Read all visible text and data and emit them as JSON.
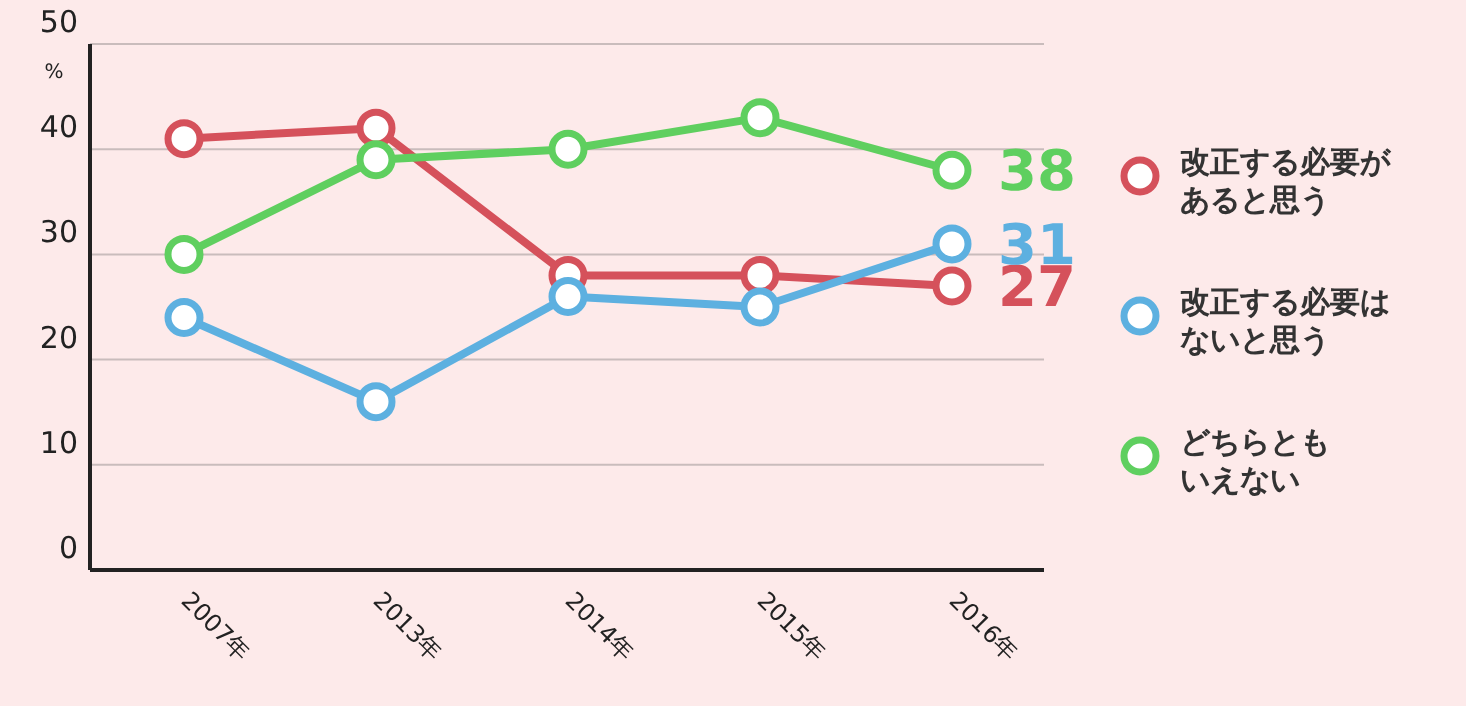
{
  "chart_data": {
    "type": "line",
    "ylabel": "%",
    "categories": [
      "2007年",
      "2013年",
      "2014年",
      "2015年",
      "2016年"
    ],
    "ylim": [
      0,
      50
    ],
    "yticks": [
      0,
      10,
      20,
      30,
      40,
      50
    ],
    "grid": "y",
    "legend": "right",
    "marker": "circle",
    "line_style": "solid",
    "series": [
      {
        "name": "改正する必要があると思う",
        "color": "#d5515b",
        "values": [
          41,
          42,
          28,
          28,
          27
        ],
        "value_labels": [
          null,
          null,
          null,
          null,
          "27"
        ]
      },
      {
        "name": "改正する必要はないと思う",
        "color": "#5db0e0",
        "values": [
          24,
          16,
          26,
          25,
          31
        ],
        "value_labels": [
          null,
          null,
          null,
          null,
          "31"
        ]
      },
      {
        "name": "どちらともいえない",
        "color": "#5fcf5f",
        "values": [
          30,
          39,
          40,
          43,
          38
        ],
        "value_labels": [
          null,
          null,
          null,
          null,
          "38"
        ]
      }
    ]
  }
}
